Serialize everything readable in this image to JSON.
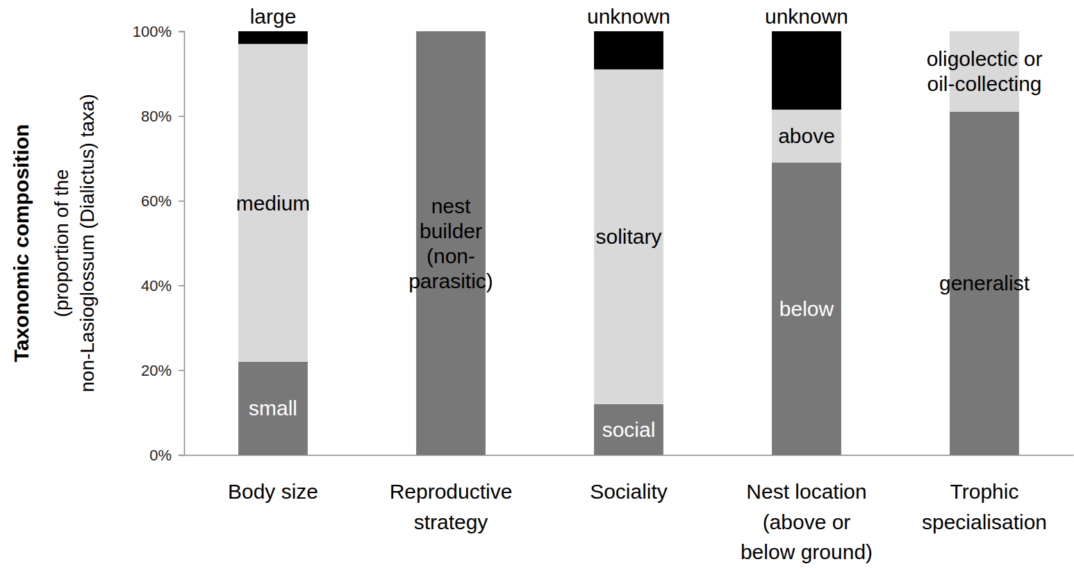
{
  "chart_data": {
    "type": "bar",
    "stacked": true,
    "grid": false,
    "y_label": [
      "Taxonomic composition",
      "(proportion of the",
      "non-Lasioglossum (Dialictus) taxa)"
    ],
    "categories": [
      "Body size",
      "Reproductive strategy",
      "Sociality",
      "Nest location (above or below ground)",
      "Trophic specialisation"
    ],
    "ylim": [
      0,
      100
    ],
    "yticks": [
      {
        "value": 0,
        "label": "0%"
      },
      {
        "value": 20,
        "label": "20%"
      },
      {
        "value": 40,
        "label": "40%"
      },
      {
        "value": 60,
        "label": "60%"
      },
      {
        "value": 80,
        "label": "80%"
      },
      {
        "value": 100,
        "label": "100%"
      }
    ],
    "series": [
      {
        "name": "small",
        "color": "#787878",
        "values": [
          22,
          null,
          null,
          null,
          null
        ]
      },
      {
        "name": "medium",
        "color": "#d9d9d9",
        "values": [
          75,
          null,
          null,
          null,
          null
        ]
      },
      {
        "name": "large",
        "color": "#000000",
        "values": [
          3,
          null,
          null,
          null,
          null
        ]
      },
      {
        "name": "nest builder (non-parasitic)",
        "color": "#787878",
        "values": [
          null,
          100,
          null,
          null,
          null
        ]
      },
      {
        "name": "social",
        "color": "#787878",
        "values": [
          null,
          null,
          12,
          null,
          null
        ]
      },
      {
        "name": "solitary",
        "color": "#d9d9d9",
        "values": [
          null,
          null,
          79,
          null,
          null
        ]
      },
      {
        "name": "unknown",
        "color": "#000000",
        "values": [
          null,
          null,
          9,
          null,
          null
        ]
      },
      {
        "name": "below",
        "color": "#787878",
        "values": [
          null,
          null,
          null,
          69,
          null
        ]
      },
      {
        "name": "above",
        "color": "#d9d9d9",
        "values": [
          null,
          null,
          null,
          12.5,
          null
        ]
      },
      {
        "name": "unknown",
        "color": "#000000",
        "values": [
          null,
          null,
          null,
          18.5,
          null
        ]
      },
      {
        "name": "generalist",
        "color": "#787878",
        "values": [
          null,
          null,
          null,
          null,
          81
        ]
      },
      {
        "name": "oligolectic or oil-collecting",
        "color": "#d9d9d9",
        "values": [
          null,
          null,
          null,
          null,
          19
        ]
      }
    ]
  }
}
